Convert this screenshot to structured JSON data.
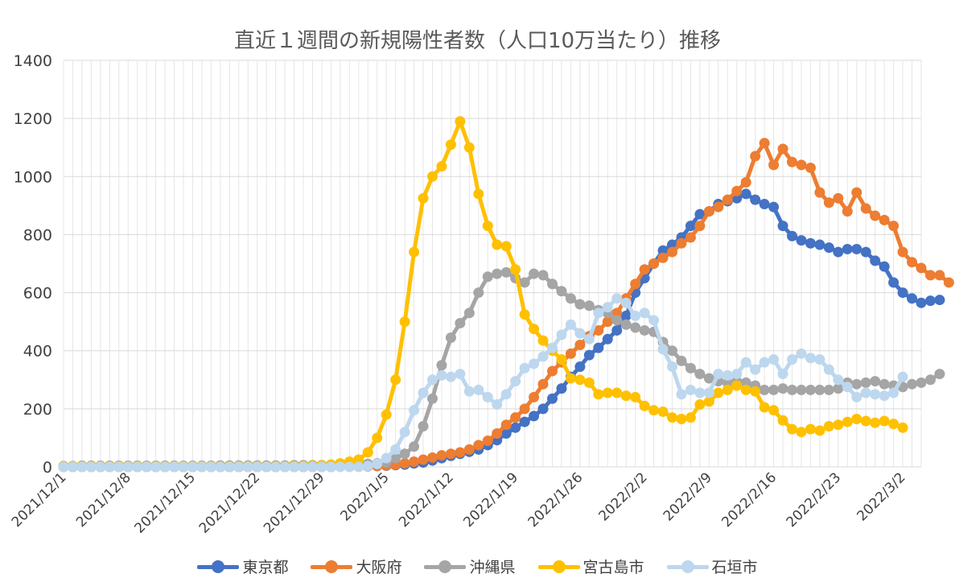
{
  "chart_data": {
    "type": "line",
    "title": "直近１週間の新規陽性者数（人口10万当たり）推移",
    "xlabel": "",
    "ylabel": "",
    "ylim": [
      0,
      1400
    ],
    "yticks": [
      0,
      200,
      400,
      600,
      800,
      1000,
      1200,
      1400
    ],
    "x_start": "2021-12-01",
    "x_tick_labels": [
      "2021/12/1",
      "2021/12/8",
      "2021/12/15",
      "2021/12/22",
      "2021/12/29",
      "2022/1/5",
      "2022/1/12",
      "2022/1/19",
      "2022/1/26",
      "2022/2/2",
      "2022/2/9",
      "2022/2/16",
      "2022/2/23",
      "2022/3/2"
    ],
    "grid": true,
    "legend_position": "bottom",
    "series": [
      {
        "name": "東京都",
        "color": "#4472C4",
        "values": [
          0,
          0,
          0,
          0,
          0,
          0,
          0,
          0,
          0,
          0,
          0,
          0,
          0,
          0,
          0,
          0,
          0,
          0,
          0,
          0,
          0,
          0,
          0,
          0,
          0,
          0,
          0,
          0,
          0,
          0,
          1,
          1,
          2,
          2,
          3,
          4,
          6,
          8,
          12,
          15,
          22,
          30,
          38,
          45,
          52,
          60,
          75,
          92,
          115,
          135,
          155,
          175,
          200,
          235,
          270,
          310,
          345,
          385,
          410,
          440,
          470,
          520,
          600,
          650,
          700,
          745,
          765,
          790,
          830,
          870,
          880,
          905,
          915,
          925,
          940,
          920,
          905,
          895,
          830,
          795,
          780,
          770,
          765,
          755,
          740,
          750,
          750,
          740,
          710,
          690,
          635,
          600,
          580,
          565,
          572,
          575
        ]
      },
      {
        "name": "大阪府",
        "color": "#ED7D31",
        "values": [
          0,
          0,
          0,
          0,
          0,
          0,
          0,
          0,
          0,
          0,
          0,
          0,
          0,
          0,
          0,
          0,
          0,
          0,
          0,
          0,
          0,
          0,
          0,
          0,
          0,
          0,
          0,
          0,
          0,
          0,
          1,
          1,
          2,
          2,
          3,
          5,
          8,
          12,
          18,
          25,
          32,
          40,
          45,
          50,
          60,
          75,
          90,
          115,
          145,
          170,
          200,
          240,
          285,
          330,
          360,
          390,
          420,
          450,
          470,
          500,
          530,
          580,
          630,
          680,
          700,
          720,
          740,
          770,
          790,
          830,
          880,
          895,
          920,
          950,
          980,
          1070,
          1115,
          1040,
          1095,
          1050,
          1040,
          1030,
          945,
          910,
          925,
          880,
          945,
          890,
          865,
          850,
          830,
          740,
          705,
          685,
          660,
          660,
          635
        ]
      },
      {
        "name": "沖縄県",
        "color": "#A5A5A5",
        "values": [
          3,
          3,
          4,
          4,
          4,
          4,
          4,
          4,
          4,
          4,
          4,
          4,
          4,
          4,
          4,
          4,
          4,
          5,
          5,
          5,
          5,
          5,
          5,
          5,
          5,
          6,
          6,
          6,
          6,
          7,
          8,
          8,
          9,
          10,
          12,
          15,
          30,
          45,
          70,
          140,
          235,
          350,
          445,
          495,
          530,
          600,
          655,
          665,
          670,
          650,
          635,
          665,
          660,
          630,
          605,
          580,
          560,
          555,
          540,
          530,
          505,
          490,
          480,
          470,
          465,
          430,
          400,
          365,
          340,
          320,
          305,
          295,
          290,
          295,
          290,
          280,
          265,
          265,
          270,
          265,
          265,
          265,
          265,
          265,
          270,
          290,
          285,
          290,
          295,
          285,
          280,
          275,
          285,
          290,
          300,
          320
        ]
      },
      {
        "name": "宮古島市",
        "color": "#FFC000",
        "values": [
          2,
          2,
          2,
          2,
          2,
          2,
          2,
          2,
          2,
          2,
          2,
          2,
          2,
          2,
          2,
          2,
          2,
          2,
          2,
          2,
          2,
          2,
          2,
          2,
          2,
          3,
          3,
          4,
          5,
          8,
          12,
          18,
          25,
          50,
          100,
          180,
          300,
          500,
          740,
          925,
          1000,
          1035,
          1110,
          1190,
          1100,
          940,
          830,
          765,
          760,
          680,
          525,
          475,
          435,
          400,
          370,
          305,
          300,
          290,
          250,
          255,
          255,
          245,
          240,
          210,
          195,
          190,
          170,
          165,
          170,
          215,
          225,
          255,
          265,
          280,
          265,
          260,
          205,
          195,
          160,
          130,
          120,
          130,
          125,
          140,
          145,
          155,
          165,
          158,
          152,
          158,
          148,
          135
        ]
      },
      {
        "name": "石垣市",
        "color": "#BDD7EE",
        "values": [
          0,
          0,
          0,
          0,
          0,
          0,
          0,
          0,
          0,
          0,
          0,
          0,
          0,
          0,
          0,
          0,
          0,
          0,
          0,
          0,
          0,
          0,
          0,
          0,
          0,
          0,
          0,
          0,
          0,
          0,
          0,
          0,
          0,
          3,
          10,
          30,
          60,
          120,
          195,
          255,
          300,
          315,
          310,
          320,
          260,
          265,
          240,
          215,
          250,
          295,
          340,
          355,
          380,
          410,
          455,
          490,
          460,
          440,
          530,
          550,
          580,
          565,
          520,
          530,
          505,
          405,
          345,
          250,
          265,
          255,
          255,
          320,
          315,
          320,
          360,
          335,
          360,
          370,
          320,
          370,
          390,
          375,
          370,
          335,
          300,
          275,
          240,
          255,
          250,
          245,
          255,
          310
        ]
      }
    ]
  }
}
